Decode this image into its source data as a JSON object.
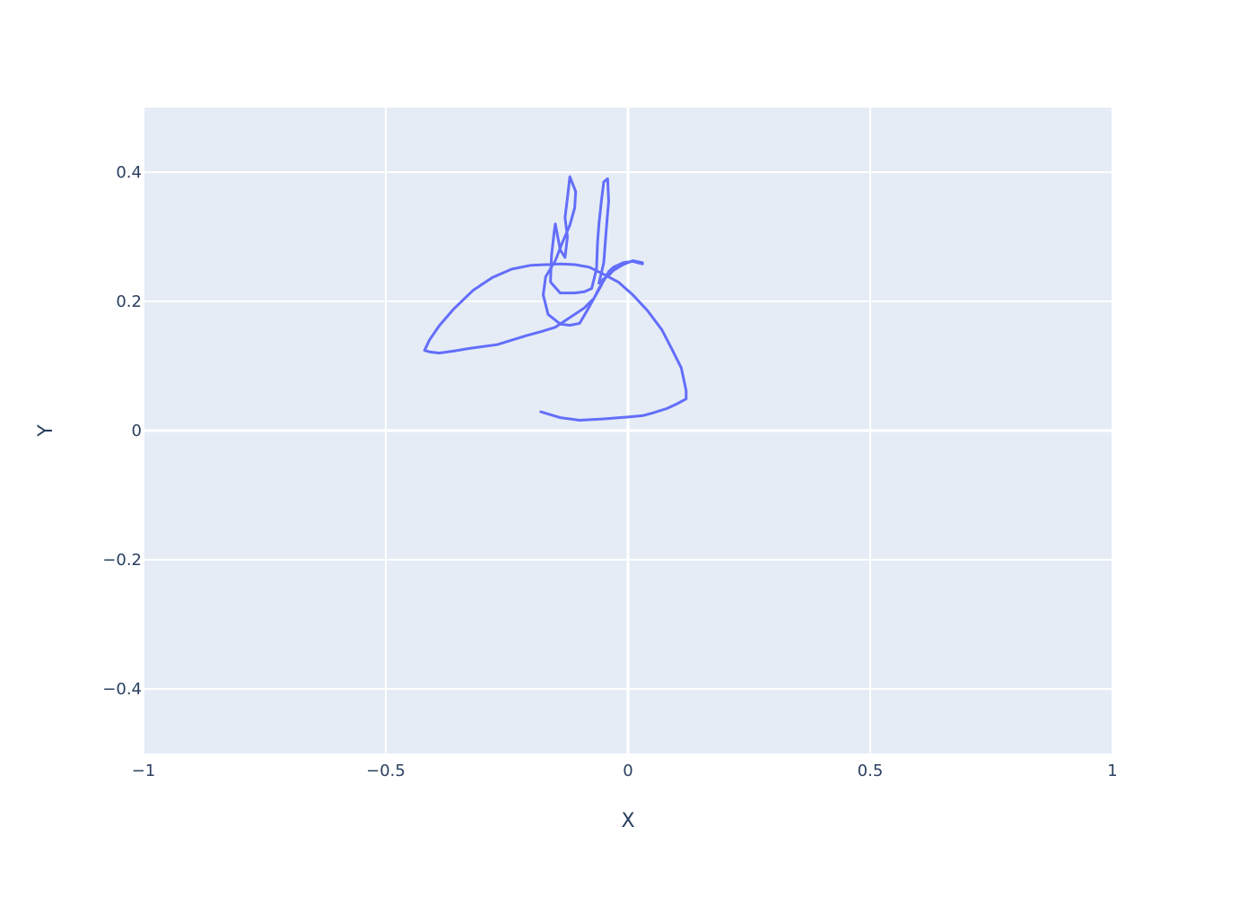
{
  "chart_data": {
    "type": "line",
    "title": "",
    "xlabel": "X",
    "ylabel": "Y",
    "xlim": [
      -1,
      1
    ],
    "ylim": [
      -0.5,
      0.5
    ],
    "grid": true,
    "xticks": [
      -1,
      -0.5,
      0,
      0.5,
      1
    ],
    "xtick_labels": [
      "−1",
      "−0.5",
      "0",
      "0.5",
      "1"
    ],
    "yticks": [
      -0.4,
      -0.2,
      0,
      0.2,
      0.4
    ],
    "ytick_labels": [
      "−0.4",
      "−0.2",
      "0",
      "0.2",
      "0.4"
    ],
    "colors": {
      "plot_bg": "#e5ecf6",
      "grid": "#ffffff",
      "line": "#636efa"
    },
    "series": [
      {
        "x": [
          -0.18,
          -0.14,
          -0.1,
          -0.05,
          0.0,
          0.03,
          0.05,
          0.08,
          0.1,
          0.12,
          0.12,
          0.11,
          0.09,
          0.07,
          0.04,
          0.01,
          -0.02,
          -0.05,
          -0.08,
          -0.11,
          -0.14,
          -0.17,
          -0.2,
          -0.24,
          -0.28,
          -0.32,
          -0.36,
          -0.39,
          -0.41,
          -0.42,
          -0.41,
          -0.39,
          -0.36,
          -0.33,
          -0.3,
          -0.27,
          -0.24,
          -0.21,
          -0.18,
          -0.15,
          -0.12,
          -0.09,
          -0.07,
          -0.06,
          -0.05,
          -0.04,
          -0.03,
          -0.01,
          0.01,
          0.03,
          0.03,
          0.01,
          -0.01,
          -0.03,
          -0.04,
          -0.05,
          -0.06,
          -0.05,
          -0.045,
          -0.04,
          -0.042,
          -0.05,
          -0.055,
          -0.06,
          -0.063,
          -0.065,
          -0.075,
          -0.09,
          -0.11,
          -0.14,
          -0.16,
          -0.158,
          -0.152,
          -0.15,
          -0.145,
          -0.14,
          -0.13,
          -0.125,
          -0.13,
          -0.125,
          -0.12,
          -0.108,
          -0.11,
          -0.12,
          -0.135,
          -0.15,
          -0.17,
          -0.175,
          -0.165,
          -0.14,
          -0.12,
          -0.1,
          -0.085,
          -0.07,
          -0.055,
          -0.05
        ],
        "y": [
          0.029,
          0.02,
          0.016,
          0.018,
          0.021,
          0.023,
          0.027,
          0.034,
          0.041,
          0.049,
          0.062,
          0.097,
          0.127,
          0.156,
          0.186,
          0.21,
          0.23,
          0.242,
          0.253,
          0.257,
          0.258,
          0.257,
          0.256,
          0.25,
          0.237,
          0.217,
          0.188,
          0.162,
          0.14,
          0.124,
          0.122,
          0.12,
          0.123,
          0.127,
          0.13,
          0.133,
          0.14,
          0.147,
          0.153,
          0.16,
          0.175,
          0.19,
          0.205,
          0.22,
          0.232,
          0.246,
          0.253,
          0.26,
          0.262,
          0.258,
          0.26,
          0.263,
          0.257,
          0.248,
          0.24,
          0.235,
          0.228,
          0.26,
          0.31,
          0.355,
          0.39,
          0.385,
          0.355,
          0.32,
          0.29,
          0.25,
          0.22,
          0.215,
          0.213,
          0.213,
          0.23,
          0.27,
          0.31,
          0.32,
          0.3,
          0.28,
          0.268,
          0.3,
          0.33,
          0.36,
          0.393,
          0.37,
          0.345,
          0.318,
          0.292,
          0.263,
          0.238,
          0.21,
          0.18,
          0.165,
          0.163,
          0.166,
          0.185,
          0.205,
          0.225,
          0.235
        ]
      }
    ]
  }
}
